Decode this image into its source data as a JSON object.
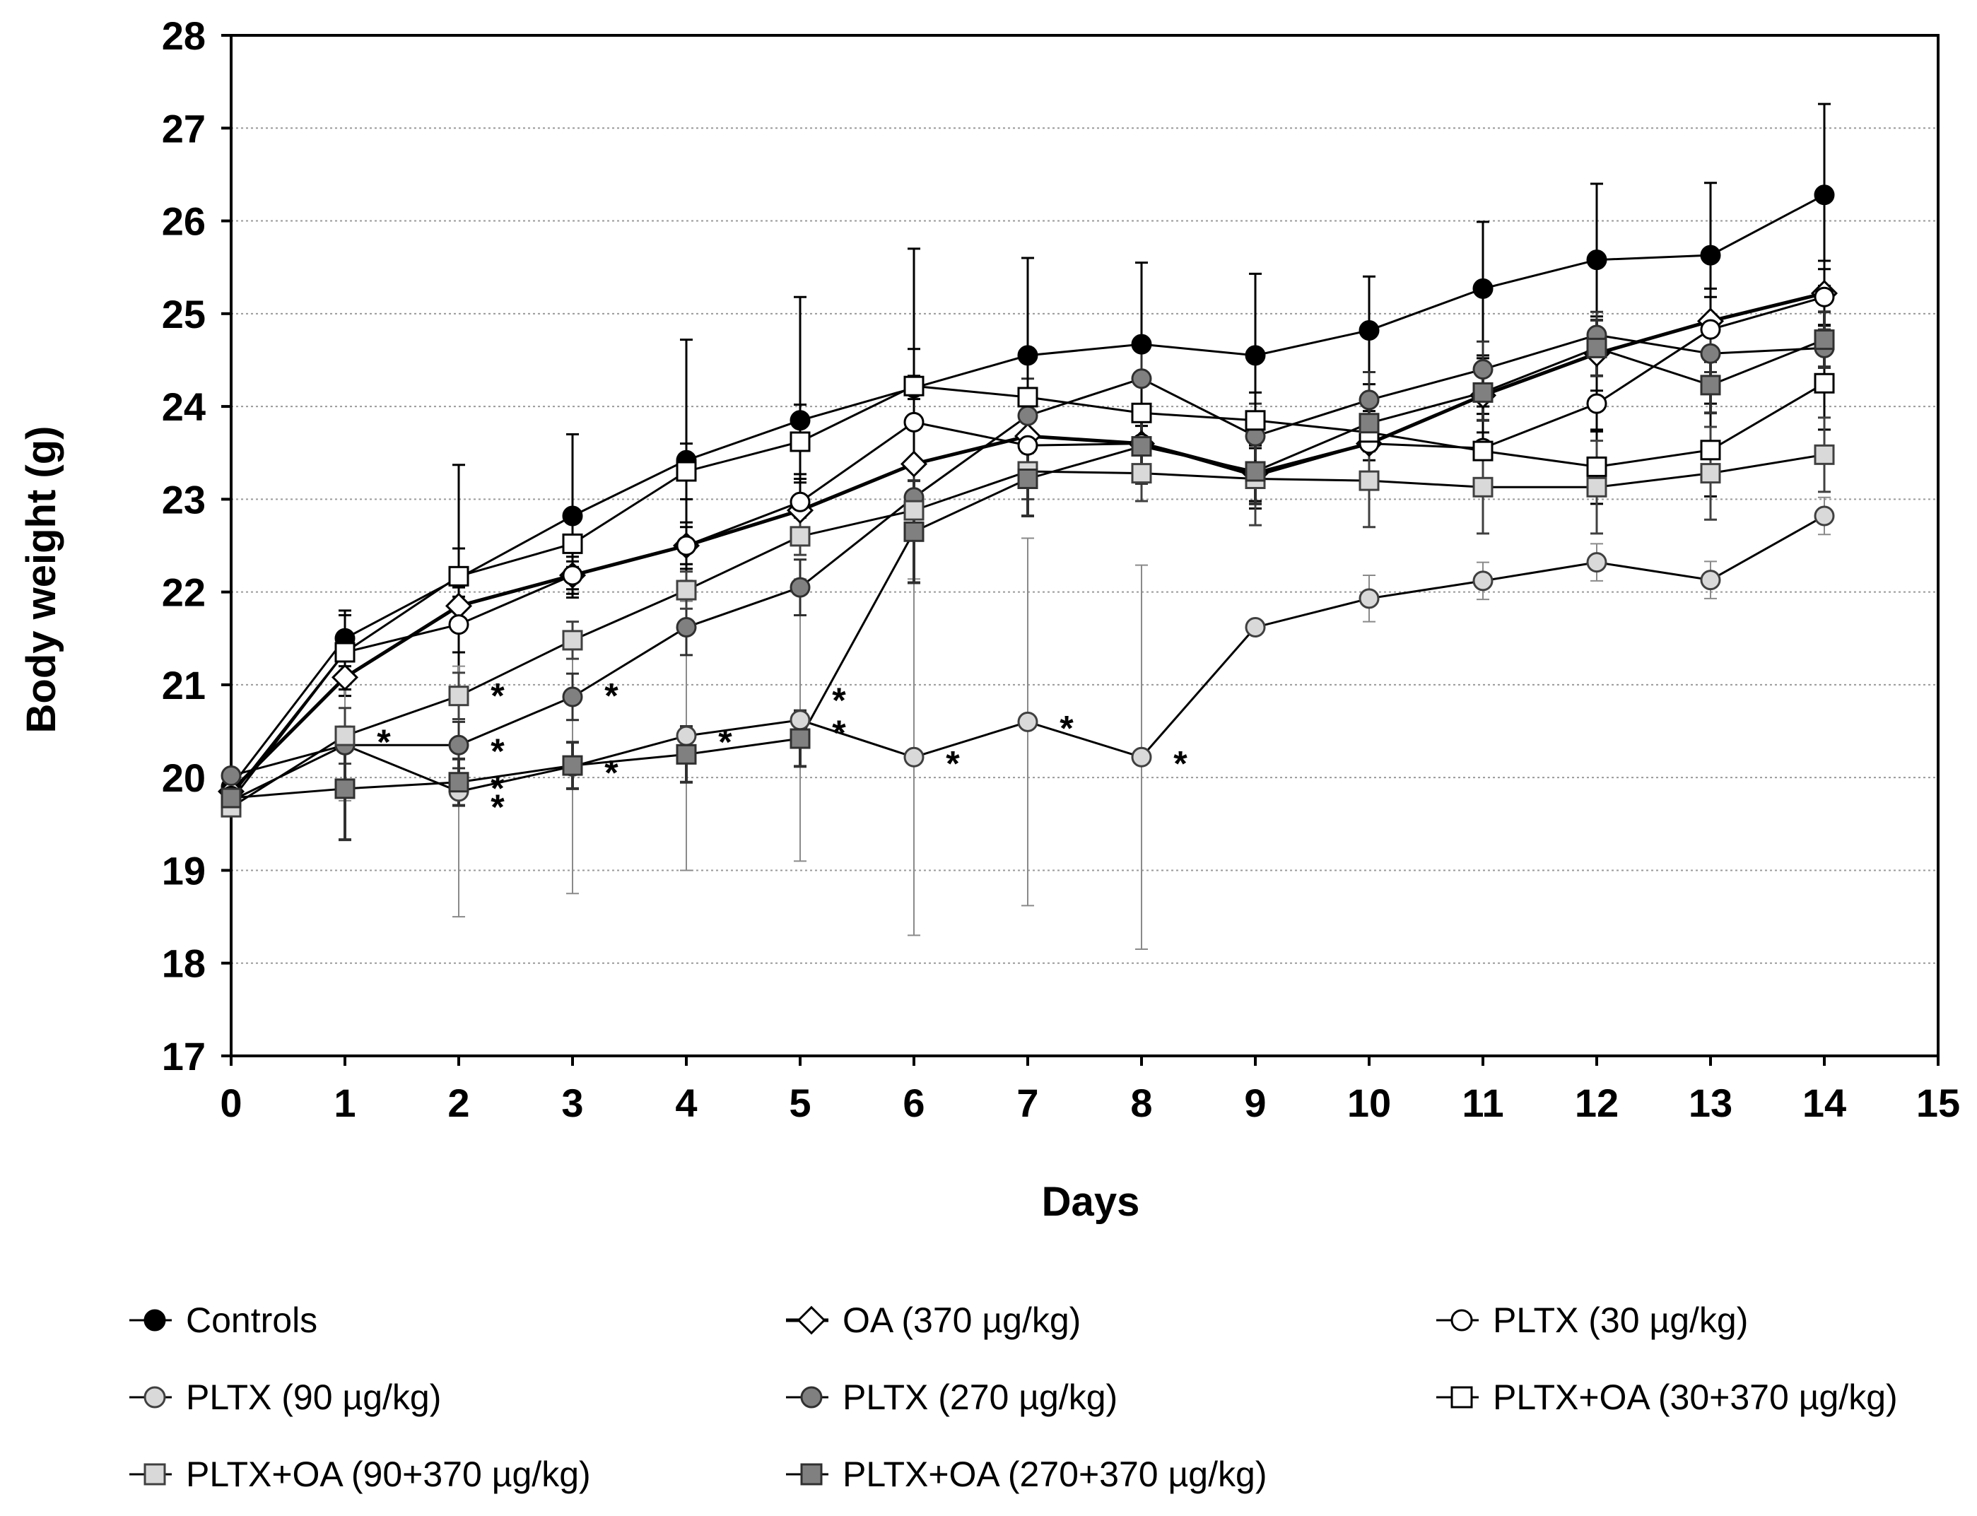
{
  "chart_data": {
    "type": "line",
    "title": "",
    "xlabel": "Days",
    "ylabel": "Body weight (g)",
    "xlim": [
      0,
      15
    ],
    "ylim": [
      17,
      28
    ],
    "x_ticks": [
      "0",
      "1",
      "2",
      "3",
      "4",
      "5",
      "6",
      "7",
      "8",
      "9",
      "10",
      "11",
      "12",
      "13",
      "14",
      "15"
    ],
    "y_ticks": [
      "17",
      "18",
      "19",
      "20",
      "21",
      "22",
      "23",
      "24",
      "25",
      "26",
      "27",
      "28"
    ],
    "grid": "horizontal dotted",
    "legend_position": "bottom",
    "significance_marker": "*",
    "series": [
      {
        "name": "Controls",
        "marker": "circle",
        "fill": "#000000",
        "stroke": "#000000",
        "x": [
          0,
          1,
          2,
          3,
          4,
          5,
          6,
          7,
          8,
          9,
          10,
          11,
          12,
          13,
          14
        ],
        "y": [
          19.9,
          21.5,
          22.15,
          22.82,
          23.42,
          23.85,
          24.2,
          24.55,
          24.67,
          24.55,
          24.82,
          25.27,
          25.58,
          25.63,
          26.28
        ],
        "err": [
          0,
          0.3,
          1.22,
          0.88,
          1.3,
          1.33,
          1.5,
          1.05,
          0.88,
          0.88,
          0.58,
          0.72,
          0.82,
          0.78,
          0.98
        ]
      },
      {
        "name": "OA (370 µg/kg)",
        "marker": "diamond",
        "fill": "#ffffff",
        "stroke": "#000000",
        "x": [
          0,
          1,
          2,
          3,
          4,
          5,
          6,
          7,
          8,
          9,
          10,
          11,
          12,
          13,
          14
        ],
        "y": [
          19.85,
          21.08,
          21.85,
          22.18,
          22.5,
          22.88,
          23.38,
          23.68,
          23.6,
          23.28,
          23.6,
          24.12,
          24.57,
          24.92,
          25.22
        ],
        "err": [
          0,
          0.2,
          0.2,
          0.15,
          0.2,
          0.3,
          0.7,
          0.5,
          0.35,
          0.3,
          0.4,
          0.4,
          0.4,
          0.35,
          0.35
        ]
      },
      {
        "name": "PLTX (30 µg/kg)",
        "marker": "circle",
        "fill": "#ffffff",
        "stroke": "#000000",
        "x": [
          0,
          1,
          2,
          3,
          4,
          5,
          6,
          7,
          8,
          9,
          10,
          11,
          12,
          13,
          14
        ],
        "y": [
          19.8,
          21.35,
          21.65,
          22.18,
          22.5,
          22.97,
          23.83,
          23.58,
          23.6,
          23.25,
          23.6,
          23.55,
          24.03,
          24.83,
          25.18
        ],
        "err": [
          0,
          0.4,
          0.3,
          0.2,
          0.25,
          0.3,
          0.5,
          0.45,
          0.35,
          0.35,
          0.35,
          0.45,
          0.3,
          0.35,
          0.3
        ]
      },
      {
        "name": "PLTX (90 µg/kg)",
        "marker": "circle",
        "fill": "#d9d9d9",
        "stroke": "#404040",
        "x": [
          0,
          1,
          2,
          3,
          4,
          5,
          6,
          7,
          8,
          9,
          10,
          11,
          12,
          13,
          14
        ],
        "y": [
          19.75,
          20.35,
          19.85,
          20.12,
          20.45,
          20.62,
          20.22,
          20.6,
          20.22,
          21.62,
          21.93,
          22.12,
          22.32,
          22.13,
          22.82
        ],
        "err": [
          0,
          0.6,
          1.35,
          1.37,
          1.45,
          1.52,
          1.92,
          1.98,
          2.07,
          0,
          0.25,
          0.2,
          0.2,
          0.2,
          0.2
        ]
      },
      {
        "name": "PLTX (270 µg/kg)",
        "marker": "circle",
        "fill": "#808080",
        "stroke": "#303030",
        "x": [
          0,
          1,
          2,
          3,
          4,
          5,
          6,
          7,
          8,
          9,
          10,
          11,
          12,
          13,
          14
        ],
        "y": [
          20.02,
          20.35,
          20.35,
          20.87,
          21.62,
          22.05,
          23.02,
          23.9,
          24.3,
          23.68,
          24.07,
          24.4,
          24.77,
          24.57,
          24.63
        ],
        "err": [
          0,
          0.2,
          0.25,
          0.25,
          0.3,
          0.3,
          0.4,
          0.4,
          0.4,
          0.35,
          0.3,
          0.3,
          0.25,
          0.2,
          0.2
        ]
      },
      {
        "name": "PLTX+OA (30+370 µg/kg)",
        "marker": "square",
        "fill": "#ffffff",
        "stroke": "#000000",
        "x": [
          0,
          1,
          2,
          3,
          4,
          5,
          6,
          7,
          8,
          9,
          10,
          11,
          12,
          13,
          14
        ],
        "y": [
          19.75,
          21.35,
          22.17,
          22.52,
          23.3,
          23.62,
          24.22,
          24.1,
          23.93,
          23.85,
          23.72,
          23.52,
          23.35,
          23.53,
          24.25
        ],
        "err": [
          0,
          0.4,
          0.3,
          0.25,
          0.3,
          0.4,
          0.4,
          0.5,
          0.4,
          0.3,
          0.3,
          0.4,
          0.4,
          0.5,
          0.5
        ]
      },
      {
        "name": "PLTX+OA (90+370 µg/kg)",
        "marker": "square",
        "fill": "#d9d9d9",
        "stroke": "#404040",
        "x": [
          0,
          1,
          2,
          3,
          4,
          5,
          6,
          7,
          8,
          9,
          10,
          11,
          12,
          13,
          14
        ],
        "y": [
          19.68,
          20.45,
          20.88,
          21.48,
          22.02,
          22.6,
          22.88,
          23.3,
          23.28,
          23.22,
          23.2,
          23.13,
          23.13,
          23.28,
          23.48
        ],
        "err": [
          0,
          0.3,
          0.25,
          0.2,
          0.2,
          0.2,
          0.2,
          0.3,
          0.3,
          0.5,
          0.5,
          0.5,
          0.5,
          0.5,
          0.4
        ]
      },
      {
        "name": "PLTX+OA (270+370 µg/kg)",
        "marker": "square",
        "fill": "#808080",
        "stroke": "#303030",
        "x": [
          0,
          1,
          2,
          3,
          4,
          5,
          6,
          7,
          8,
          9,
          10,
          11,
          12,
          13,
          14
        ],
        "y": [
          19.78,
          19.88,
          19.95,
          20.13,
          20.25,
          20.42,
          22.65,
          23.22,
          23.57,
          23.3,
          23.82,
          24.15,
          24.63,
          24.23,
          24.72
        ],
        "err": [
          0,
          0.55,
          0.25,
          0.25,
          0.3,
          0.3,
          0.55,
          0.4,
          0.4,
          0.35,
          0.3,
          0.3,
          0.3,
          0.3,
          0.3
        ]
      }
    ],
    "significance": [
      {
        "x": 1,
        "y": 20.45
      },
      {
        "x": 2,
        "y": 20.95
      },
      {
        "x": 2,
        "y": 20.35
      },
      {
        "x": 2,
        "y": 19.95
      },
      {
        "x": 2,
        "y": 19.75
      },
      {
        "x": 3,
        "y": 20.95
      },
      {
        "x": 3,
        "y": 20.12
      },
      {
        "x": 4,
        "y": 20.45
      },
      {
        "x": 5,
        "y": 20.9
      },
      {
        "x": 5,
        "y": 20.55
      },
      {
        "x": 6,
        "y": 20.22
      },
      {
        "x": 7,
        "y": 20.6
      },
      {
        "x": 8,
        "y": 20.22
      }
    ]
  }
}
